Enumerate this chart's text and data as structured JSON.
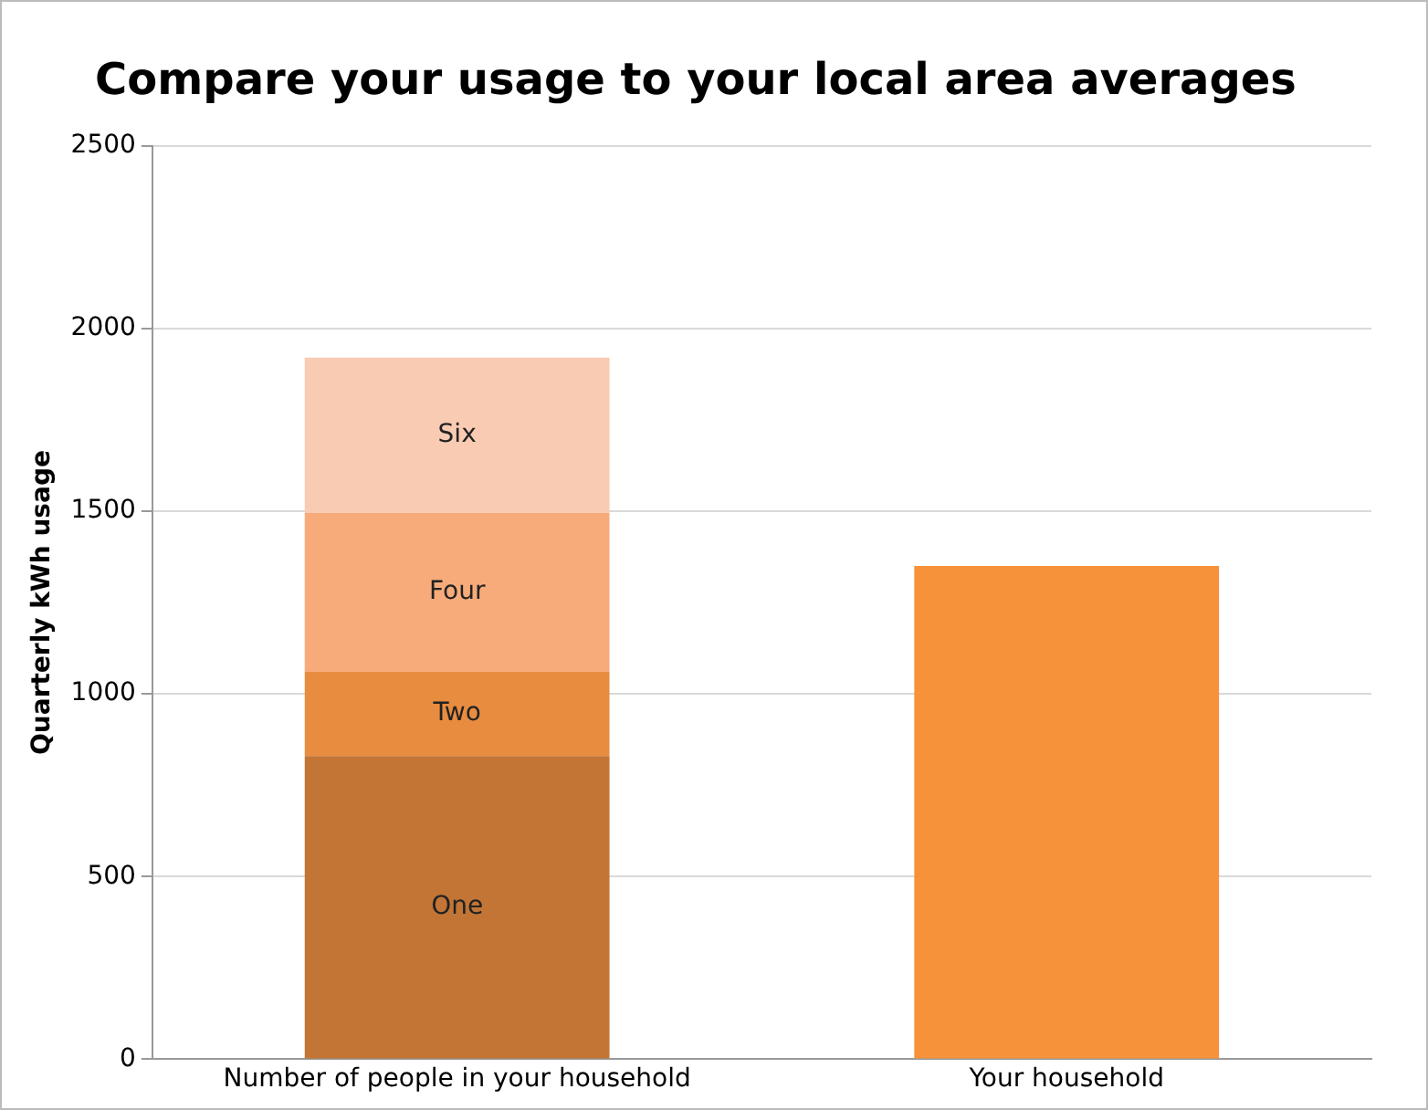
{
  "chart_data": {
    "type": "bar",
    "title": "Compare your usage to your local area averages",
    "ylabel": "Quarterly kWh usage",
    "categories": [
      "Number of people in your household",
      "Your household"
    ],
    "stacked": true,
    "series": [
      {
        "name": "One",
        "color": "#c27535",
        "values": [
          830,
          null
        ]
      },
      {
        "name": "Two",
        "color": "#e88c40",
        "values": [
          230,
          null
        ]
      },
      {
        "name": "Four",
        "color": "#f7ab7a",
        "values": [
          435,
          null
        ]
      },
      {
        "name": "Six",
        "color": "#f9cbb3",
        "values": [
          425,
          null
        ]
      },
      {
        "color": "#f5923a",
        "values": [
          null,
          1350
        ]
      }
    ],
    "ylim": [
      0,
      2500
    ],
    "yticks": [
      0,
      500,
      1000,
      1500,
      2000,
      2500
    ],
    "grid": "y",
    "legend": false
  }
}
